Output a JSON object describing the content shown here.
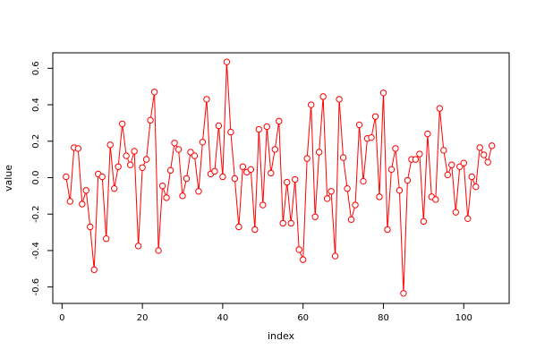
{
  "chart_data": {
    "type": "line",
    "xlabel": "index",
    "ylabel": "value",
    "xlim": [
      -2.3,
      111.3
    ],
    "ylim": [
      -0.69,
      0.685
    ],
    "xticks": [
      0,
      20,
      40,
      60,
      80,
      100
    ],
    "yticks": [
      -0.6,
      -0.4,
      -0.2,
      0.0,
      0.2,
      0.4,
      0.6
    ],
    "yticks_labels": [
      "-0.6",
      "-0.4",
      "-0.2",
      "0.0",
      "0.2",
      "0.4",
      "0.6"
    ],
    "grid": false,
    "color": "#ff0000",
    "x": [
      1,
      2,
      3,
      4,
      5,
      6,
      7,
      8,
      9,
      10,
      11,
      12,
      13,
      14,
      15,
      16,
      17,
      18,
      19,
      20,
      21,
      22,
      23,
      24,
      25,
      26,
      27,
      28,
      29,
      30,
      31,
      32,
      33,
      34,
      35,
      36,
      37,
      38,
      39,
      40,
      41,
      42,
      43,
      44,
      45,
      46,
      47,
      48,
      49,
      50,
      51,
      52,
      53,
      54,
      55,
      56,
      57,
      58,
      59,
      60,
      61,
      62,
      63,
      64,
      65,
      66,
      67,
      68,
      69,
      70,
      71,
      72,
      73,
      74,
      75,
      76,
      77,
      78,
      79,
      80,
      81,
      82,
      83,
      84,
      85,
      86,
      87,
      88,
      89,
      90,
      91,
      92,
      93,
      94,
      95,
      96,
      97,
      98,
      99,
      100,
      101,
      102,
      103,
      104,
      105,
      106,
      107
    ],
    "y": [
      0.005,
      -0.13,
      0.165,
      0.16,
      -0.145,
      -0.07,
      -0.27,
      -0.505,
      0.02,
      0.005,
      -0.335,
      0.18,
      -0.06,
      0.06,
      0.295,
      0.12,
      0.07,
      0.145,
      -0.375,
      0.055,
      0.1,
      0.315,
      0.47,
      -0.4,
      -0.045,
      -0.11,
      0.04,
      0.19,
      0.155,
      -0.1,
      -0.005,
      0.14,
      0.12,
      -0.075,
      0.195,
      0.43,
      0.02,
      0.035,
      0.285,
      0.005,
      0.635,
      0.25,
      -0.005,
      -0.27,
      0.06,
      0.03,
      0.045,
      -0.285,
      0.265,
      -0.15,
      0.28,
      0.025,
      0.155,
      0.31,
      -0.25,
      -0.025,
      -0.25,
      -0.01,
      -0.395,
      -0.45,
      0.105,
      0.4,
      -0.215,
      0.14,
      0.445,
      -0.115,
      -0.075,
      -0.43,
      0.43,
      0.11,
      -0.06,
      -0.23,
      -0.15,
      0.29,
      -0.02,
      0.215,
      0.22,
      0.335,
      -0.105,
      0.465,
      -0.285,
      0.045,
      0.16,
      -0.07,
      -0.635,
      -0.015,
      0.1,
      0.1,
      0.13,
      -0.24,
      0.24,
      -0.105,
      -0.12,
      0.38,
      0.15,
      0.015,
      0.07,
      -0.19,
      0.06,
      0.08,
      -0.225,
      0.005,
      -0.05,
      0.165,
      0.125,
      0.085,
      0.175
    ]
  }
}
